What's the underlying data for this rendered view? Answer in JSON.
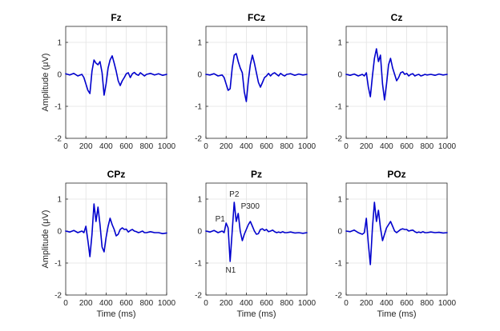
{
  "chart_data": {
    "type": "line",
    "grid": true,
    "xlim": [
      0,
      1000
    ],
    "ylim": [
      -2,
      1.5
    ],
    "xticks": [
      0,
      200,
      400,
      600,
      800,
      1000
    ],
    "yticks": [
      -2,
      -1,
      0,
      1
    ],
    "xlabel": "Time (ms)",
    "ylabel": "Amplitude (μV)",
    "line_color": "#0000CD",
    "panels": [
      {
        "title": "Fz",
        "x": [
          0,
          40,
          80,
          120,
          160,
          180,
          200,
          220,
          240,
          260,
          280,
          300,
          320,
          340,
          360,
          380,
          400,
          420,
          440,
          460,
          480,
          500,
          520,
          540,
          560,
          580,
          600,
          620,
          640,
          660,
          680,
          700,
          720,
          740,
          760,
          780,
          800,
          840,
          880,
          920,
          960,
          1000
        ],
        "y": [
          0.02,
          -0.02,
          0.03,
          -0.05,
          0.0,
          -0.1,
          -0.3,
          -0.5,
          -0.6,
          0.1,
          0.45,
          0.35,
          0.3,
          0.4,
          0.05,
          -0.65,
          -0.3,
          0.2,
          0.45,
          0.58,
          0.35,
          0.1,
          -0.2,
          -0.35,
          -0.2,
          -0.1,
          0.02,
          0.05,
          -0.1,
          0.02,
          0.06,
          0.0,
          -0.03,
          0.05,
          0.0,
          -0.05,
          0.0,
          0.03,
          -0.02,
          0.02,
          -0.03,
          0.0
        ]
      },
      {
        "title": "FCz",
        "x": [
          0,
          40,
          80,
          120,
          160,
          180,
          200,
          220,
          240,
          260,
          280,
          300,
          320,
          340,
          360,
          380,
          400,
          420,
          440,
          460,
          480,
          500,
          520,
          540,
          560,
          580,
          600,
          620,
          640,
          660,
          680,
          700,
          720,
          740,
          760,
          780,
          800,
          840,
          880,
          920,
          960,
          1000
        ],
        "y": [
          0.0,
          -0.02,
          0.02,
          -0.05,
          -0.02,
          -0.1,
          -0.3,
          -0.5,
          -0.45,
          0.2,
          0.6,
          0.65,
          0.4,
          0.2,
          0.05,
          -0.55,
          -0.85,
          -0.2,
          0.3,
          0.6,
          0.35,
          0.05,
          -0.25,
          -0.4,
          -0.25,
          -0.1,
          -0.05,
          0.03,
          -0.05,
          0.02,
          0.05,
          0.0,
          -0.05,
          0.03,
          -0.02,
          -0.05,
          0.0,
          0.02,
          -0.03,
          0.01,
          -0.02,
          0.0
        ]
      },
      {
        "title": "Cz",
        "x": [
          0,
          40,
          80,
          120,
          160,
          180,
          200,
          220,
          240,
          260,
          280,
          300,
          320,
          340,
          360,
          380,
          400,
          420,
          440,
          460,
          480,
          500,
          520,
          540,
          560,
          580,
          600,
          620,
          640,
          660,
          680,
          700,
          720,
          740,
          760,
          780,
          800,
          840,
          880,
          920,
          960,
          1000
        ],
        "y": [
          0.0,
          -0.03,
          0.01,
          -0.05,
          0.0,
          -0.05,
          0.05,
          -0.4,
          -0.7,
          -0.05,
          0.5,
          0.8,
          0.4,
          0.6,
          -0.3,
          -0.8,
          -0.3,
          0.3,
          0.5,
          0.2,
          0.0,
          -0.2,
          -0.1,
          0.05,
          0.08,
          0.0,
          0.03,
          -0.05,
          0.0,
          0.02,
          -0.05,
          -0.02,
          0.0,
          -0.05,
          -0.03,
          0.0,
          -0.02,
          0.0,
          -0.03,
          0.01,
          -0.02,
          0.0
        ]
      },
      {
        "title": "CPz",
        "x": [
          0,
          40,
          80,
          120,
          160,
          180,
          200,
          220,
          240,
          260,
          280,
          300,
          320,
          340,
          360,
          380,
          400,
          420,
          440,
          460,
          480,
          500,
          520,
          540,
          560,
          580,
          600,
          620,
          640,
          660,
          680,
          700,
          720,
          740,
          760,
          780,
          800,
          840,
          880,
          920,
          960,
          1000
        ],
        "y": [
          0.0,
          -0.03,
          0.02,
          -0.05,
          0.0,
          -0.05,
          0.15,
          -0.3,
          -0.8,
          -0.1,
          0.85,
          0.3,
          0.75,
          0.2,
          -0.5,
          -0.65,
          -0.2,
          0.15,
          0.4,
          0.2,
          0.05,
          -0.15,
          -0.1,
          0.05,
          0.1,
          0.05,
          0.06,
          -0.03,
          0.02,
          0.05,
          0.0,
          -0.02,
          -0.05,
          -0.03,
          0.0,
          -0.05,
          -0.05,
          -0.02,
          -0.05,
          -0.05,
          -0.08,
          -0.06
        ]
      },
      {
        "title": "Pz",
        "x": [
          0,
          40,
          80,
          120,
          160,
          180,
          200,
          220,
          240,
          260,
          280,
          300,
          320,
          340,
          360,
          380,
          400,
          420,
          440,
          460,
          480,
          500,
          520,
          540,
          560,
          580,
          600,
          620,
          640,
          660,
          680,
          700,
          720,
          740,
          760,
          780,
          800,
          840,
          880,
          920,
          960,
          1000
        ],
        "y": [
          0.0,
          -0.03,
          0.02,
          -0.05,
          0.0,
          -0.05,
          0.25,
          0.1,
          -0.95,
          0.0,
          0.9,
          0.3,
          0.55,
          0.0,
          -0.3,
          -0.1,
          0.05,
          0.2,
          0.3,
          0.15,
          0.0,
          -0.1,
          -0.08,
          0.05,
          0.07,
          0.02,
          0.05,
          -0.02,
          0.0,
          0.03,
          -0.02,
          -0.05,
          -0.03,
          -0.05,
          -0.02,
          -0.05,
          -0.05,
          -0.03,
          -0.06,
          -0.05,
          -0.07,
          -0.05
        ]
      },
      {
        "title": "POz",
        "x": [
          0,
          40,
          80,
          120,
          160,
          180,
          200,
          220,
          240,
          260,
          280,
          300,
          320,
          340,
          360,
          380,
          400,
          420,
          440,
          460,
          480,
          500,
          520,
          540,
          560,
          580,
          600,
          620,
          640,
          660,
          680,
          700,
          720,
          740,
          760,
          780,
          800,
          840,
          880,
          920,
          960,
          1000
        ],
        "y": [
          0.0,
          -0.02,
          0.03,
          -0.05,
          -0.1,
          -0.05,
          0.4,
          -0.4,
          -1.05,
          0.1,
          0.9,
          0.3,
          0.65,
          0.1,
          -0.3,
          -0.1,
          0.1,
          0.2,
          0.3,
          0.15,
          0.0,
          -0.05,
          0.0,
          0.05,
          0.07,
          0.05,
          0.05,
          0.0,
          0.02,
          0.03,
          -0.02,
          -0.05,
          -0.03,
          -0.05,
          -0.02,
          -0.05,
          -0.05,
          -0.03,
          -0.05,
          -0.04,
          -0.06,
          -0.05
        ]
      }
    ],
    "annotations": [
      {
        "panel": "Pz",
        "text": "P1",
        "x": 205,
        "y": 0.2
      },
      {
        "panel": "Pz",
        "text": "P2",
        "x": 280,
        "y": 0.92
      },
      {
        "panel": "Pz",
        "text": "P300",
        "x": 330,
        "y": 0.55
      },
      {
        "panel": "Pz",
        "text": "N1",
        "x": 245,
        "y": -0.95
      }
    ]
  }
}
